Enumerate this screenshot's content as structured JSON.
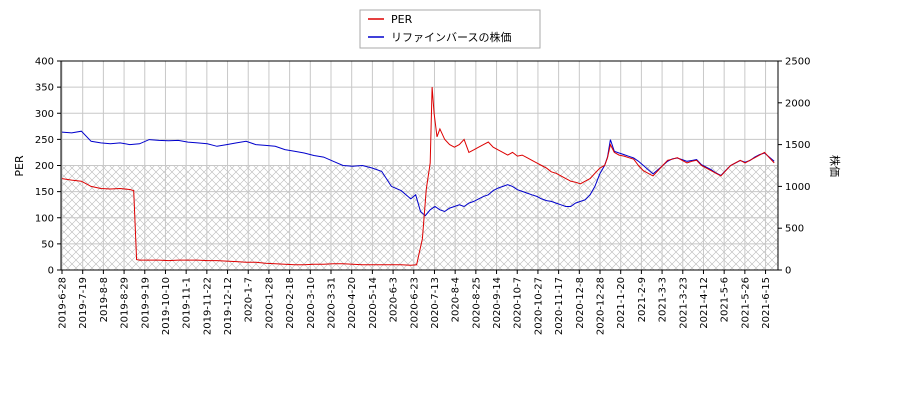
{
  "chart_data": {
    "type": "line",
    "legend": {
      "placement": "top-center"
    },
    "grid": true,
    "x_ticks": [
      "2019-6-28",
      "2019-7-19",
      "2019-8-8",
      "2019-8-29",
      "2019-9-19",
      "2019-10-10",
      "2019-11-1",
      "2019-11-22",
      "2019-12-12",
      "2020-1-7",
      "2020-1-28",
      "2020-2-18",
      "2020-3-10",
      "2020-3-31",
      "2020-4-20",
      "2020-5-14",
      "2020-6-3",
      "2020-6-23",
      "2020-7-13",
      "2020-8-4",
      "2020-8-25",
      "2020-9-14",
      "2020-10-7",
      "2020-10-27",
      "2020-11-17",
      "2020-12-8",
      "2020-12-28",
      "2021-1-20",
      "2021-2-9",
      "2021-3-3",
      "2021-3-23",
      "2021-4-12",
      "2021-5-6",
      "2021-5-26",
      "2021-6-15"
    ],
    "y_left": {
      "label": "PER",
      "min": 0,
      "max": 400,
      "ticks": [
        0,
        50,
        100,
        150,
        200,
        250,
        300,
        350,
        400
      ]
    },
    "y_right": {
      "label": "株価",
      "min": 0,
      "max": 2500,
      "ticks": [
        0,
        500,
        1000,
        1500,
        2000,
        2500
      ]
    },
    "hatch_threshold_left": 200,
    "series": [
      {
        "name": "PER",
        "axis": "left",
        "color": "#dd0000",
        "points": [
          [
            0,
            175
          ],
          [
            1,
            172
          ],
          [
            2,
            170
          ],
          [
            3,
            160
          ],
          [
            4,
            156
          ],
          [
            5,
            155
          ],
          [
            6,
            156
          ],
          [
            7,
            154
          ],
          [
            7.4,
            152
          ],
          [
            7.7,
            20
          ],
          [
            8,
            19
          ],
          [
            9,
            19
          ],
          [
            10,
            19
          ],
          [
            11,
            18
          ],
          [
            12,
            19
          ],
          [
            13,
            19
          ],
          [
            14,
            19
          ],
          [
            15,
            18
          ],
          [
            16,
            18
          ],
          [
            17,
            17
          ],
          [
            18,
            16
          ],
          [
            19,
            15
          ],
          [
            20,
            15
          ],
          [
            21,
            13
          ],
          [
            22,
            12
          ],
          [
            23,
            11
          ],
          [
            24,
            10
          ],
          [
            25,
            10
          ],
          [
            26,
            11
          ],
          [
            27,
            11
          ],
          [
            28,
            12
          ],
          [
            29,
            12
          ],
          [
            30,
            11
          ],
          [
            31,
            10
          ],
          [
            32,
            10
          ],
          [
            33,
            10
          ],
          [
            34,
            10
          ],
          [
            35,
            10
          ],
          [
            36,
            9
          ],
          [
            36.6,
            10
          ],
          [
            37.2,
            60
          ],
          [
            37.6,
            155
          ],
          [
            38.0,
            205
          ],
          [
            38.2,
            350
          ],
          [
            38.4,
            300
          ],
          [
            38.7,
            255
          ],
          [
            39,
            270
          ],
          [
            39.5,
            250
          ],
          [
            40,
            240
          ],
          [
            40.5,
            235
          ],
          [
            41,
            240
          ],
          [
            41.5,
            250
          ],
          [
            42,
            225
          ],
          [
            42.5,
            230
          ],
          [
            43,
            235
          ],
          [
            43.5,
            240
          ],
          [
            44,
            245
          ],
          [
            44.5,
            235
          ],
          [
            45,
            230
          ],
          [
            45.5,
            225
          ],
          [
            46,
            220
          ],
          [
            46.5,
            225
          ],
          [
            47,
            218
          ],
          [
            47.5,
            220
          ],
          [
            48,
            215
          ],
          [
            48.5,
            210
          ],
          [
            49,
            205
          ],
          [
            49.5,
            200
          ],
          [
            50,
            195
          ],
          [
            50.5,
            188
          ],
          [
            51,
            185
          ],
          [
            51.5,
            180
          ],
          [
            52,
            175
          ],
          [
            52.5,
            170
          ],
          [
            53,
            168
          ],
          [
            53.5,
            165
          ],
          [
            54,
            170
          ],
          [
            54.5,
            175
          ],
          [
            55,
            185
          ],
          [
            55.5,
            195
          ],
          [
            56,
            200
          ],
          [
            56.3,
            215
          ],
          [
            56.6,
            240
          ],
          [
            57,
            225
          ],
          [
            57.5,
            220
          ],
          [
            58,
            218
          ],
          [
            58.5,
            215
          ],
          [
            59,
            212
          ],
          [
            59.5,
            200
          ],
          [
            60,
            190
          ],
          [
            60.5,
            185
          ],
          [
            61,
            180
          ],
          [
            61.5,
            190
          ],
          [
            62,
            200
          ],
          [
            62.5,
            210
          ],
          [
            63,
            212
          ],
          [
            63.5,
            215
          ],
          [
            64,
            210
          ],
          [
            64.5,
            205
          ],
          [
            65,
            208
          ],
          [
            65.5,
            210
          ],
          [
            66,
            200
          ],
          [
            66.5,
            195
          ],
          [
            67,
            190
          ],
          [
            67.5,
            185
          ],
          [
            68,
            180
          ],
          [
            68.5,
            190
          ],
          [
            69,
            200
          ],
          [
            69.5,
            205
          ],
          [
            70,
            210
          ],
          [
            70.5,
            205
          ],
          [
            71,
            210
          ],
          [
            71.5,
            215
          ],
          [
            72,
            220
          ],
          [
            72.5,
            225
          ],
          [
            73,
            215
          ],
          [
            73.5,
            205
          ]
        ]
      },
      {
        "name": "リファインバースの株価",
        "axis": "right",
        "color": "#0000cc",
        "points": [
          [
            0,
            1650
          ],
          [
            1,
            1640
          ],
          [
            2,
            1660
          ],
          [
            3,
            1540
          ],
          [
            4,
            1520
          ],
          [
            5,
            1510
          ],
          [
            6,
            1520
          ],
          [
            7,
            1500
          ],
          [
            8,
            1510
          ],
          [
            9,
            1560
          ],
          [
            10,
            1550
          ],
          [
            11,
            1545
          ],
          [
            12,
            1550
          ],
          [
            13,
            1530
          ],
          [
            14,
            1520
          ],
          [
            15,
            1510
          ],
          [
            16,
            1480
          ],
          [
            17,
            1500
          ],
          [
            18,
            1520
          ],
          [
            19,
            1540
          ],
          [
            20,
            1500
          ],
          [
            21,
            1490
          ],
          [
            22,
            1480
          ],
          [
            23,
            1440
          ],
          [
            24,
            1420
          ],
          [
            25,
            1400
          ],
          [
            26,
            1370
          ],
          [
            27,
            1350
          ],
          [
            28,
            1300
          ],
          [
            29,
            1250
          ],
          [
            30,
            1240
          ],
          [
            31,
            1250
          ],
          [
            32,
            1220
          ],
          [
            33,
            1180
          ],
          [
            34,
            1000
          ],
          [
            35,
            950
          ],
          [
            36,
            850
          ],
          [
            36.5,
            900
          ],
          [
            37,
            700
          ],
          [
            37.5,
            650
          ],
          [
            38,
            720
          ],
          [
            38.5,
            760
          ],
          [
            39,
            720
          ],
          [
            39.5,
            700
          ],
          [
            40,
            740
          ],
          [
            40.5,
            760
          ],
          [
            41,
            780
          ],
          [
            41.5,
            760
          ],
          [
            42,
            800
          ],
          [
            42.5,
            820
          ],
          [
            43,
            850
          ],
          [
            43.5,
            880
          ],
          [
            44,
            900
          ],
          [
            44.5,
            950
          ],
          [
            45,
            980
          ],
          [
            45.5,
            1000
          ],
          [
            46,
            1020
          ],
          [
            46.5,
            1000
          ],
          [
            47,
            960
          ],
          [
            47.5,
            940
          ],
          [
            48,
            920
          ],
          [
            48.5,
            900
          ],
          [
            49,
            880
          ],
          [
            49.5,
            850
          ],
          [
            50,
            830
          ],
          [
            50.5,
            820
          ],
          [
            51,
            800
          ],
          [
            51.5,
            780
          ],
          [
            52,
            760
          ],
          [
            52.5,
            760
          ],
          [
            53,
            800
          ],
          [
            53.5,
            820
          ],
          [
            54,
            840
          ],
          [
            54.5,
            900
          ],
          [
            55,
            1000
          ],
          [
            55.5,
            1150
          ],
          [
            56,
            1250
          ],
          [
            56.3,
            1350
          ],
          [
            56.6,
            1560
          ],
          [
            57,
            1420
          ],
          [
            57.5,
            1400
          ],
          [
            58,
            1380
          ],
          [
            58.5,
            1360
          ],
          [
            59,
            1340
          ],
          [
            59.5,
            1300
          ],
          [
            60,
            1250
          ],
          [
            60.5,
            1200
          ],
          [
            61,
            1150
          ],
          [
            61.5,
            1200
          ],
          [
            62,
            1250
          ],
          [
            62.5,
            1300
          ],
          [
            63,
            1330
          ],
          [
            63.5,
            1340
          ],
          [
            64,
            1320
          ],
          [
            64.5,
            1300
          ],
          [
            65,
            1310
          ],
          [
            65.5,
            1320
          ],
          [
            66,
            1260
          ],
          [
            66.5,
            1230
          ],
          [
            67,
            1200
          ],
          [
            67.5,
            1160
          ],
          [
            68,
            1130
          ],
          [
            68.5,
            1190
          ],
          [
            69,
            1250
          ],
          [
            69.5,
            1280
          ],
          [
            70,
            1310
          ],
          [
            70.5,
            1290
          ],
          [
            71,
            1310
          ],
          [
            71.5,
            1350
          ],
          [
            72,
            1380
          ],
          [
            72.5,
            1400
          ],
          [
            73,
            1350
          ],
          [
            73.5,
            1300
          ]
        ]
      }
    ]
  }
}
